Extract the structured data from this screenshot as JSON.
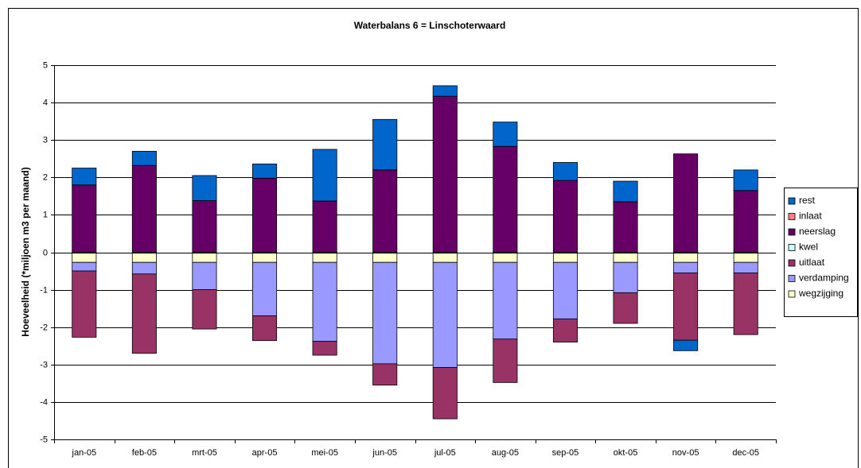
{
  "chart_data": {
    "type": "stacked_bar",
    "title": "Waterbalans 6 = Linschoterwaard",
    "ylabel": "Hoeveelheid (*miljoen m3 per maand)",
    "categories": [
      "jan-05",
      "feb-05",
      "mrt-05",
      "apr-05",
      "mei-05",
      "jun-05",
      "jul-05",
      "aug-05",
      "sep-05",
      "okt-05",
      "nov-05",
      "dec-05"
    ],
    "series": [
      {
        "name": "rest",
        "color": "#0066cc",
        "values": [
          0.45,
          0.38,
          0.67,
          0.38,
          1.38,
          1.35,
          0.28,
          0.65,
          0.48,
          0.55,
          -0.28,
          0.55
        ]
      },
      {
        "name": "inlaat",
        "color": "#ff8080",
        "values": [
          0,
          0,
          0,
          0,
          0,
          0,
          0,
          0,
          0,
          0,
          0,
          0
        ]
      },
      {
        "name": "neerslag",
        "color": "#660066",
        "values": [
          1.8,
          2.32,
          1.38,
          1.98,
          1.37,
          2.2,
          4.17,
          2.83,
          1.92,
          1.35,
          2.63,
          1.65
        ]
      },
      {
        "name": "kwel",
        "color": "#ccffff",
        "values": [
          0,
          0,
          0,
          0,
          0,
          0,
          0,
          0,
          0,
          0,
          0,
          0
        ]
      },
      {
        "name": "uitlaat",
        "color": "#993366",
        "values": [
          -1.77,
          -2.12,
          -1.05,
          -0.66,
          -0.37,
          -0.57,
          -1.37,
          -1.16,
          -0.62,
          -0.82,
          -1.8,
          -1.65
        ]
      },
      {
        "name": "verdamping",
        "color": "#9999ff",
        "values": [
          -0.23,
          -0.31,
          -0.73,
          -1.43,
          -2.11,
          -2.71,
          -2.81,
          -2.05,
          -1.51,
          -0.81,
          -0.28,
          -0.28
        ]
      },
      {
        "name": "wegzijging",
        "color": "#ffffcc",
        "values": [
          -0.27,
          -0.27,
          -0.27,
          -0.27,
          -0.27,
          -0.27,
          -0.27,
          -0.27,
          -0.27,
          -0.27,
          -0.27,
          -0.27
        ]
      }
    ],
    "ylim": [
      -5,
      5
    ],
    "yticks": [
      -5,
      -4,
      -3,
      -2,
      -1,
      0,
      1,
      2,
      3,
      4,
      5
    ],
    "grid": true,
    "legend": "right"
  }
}
